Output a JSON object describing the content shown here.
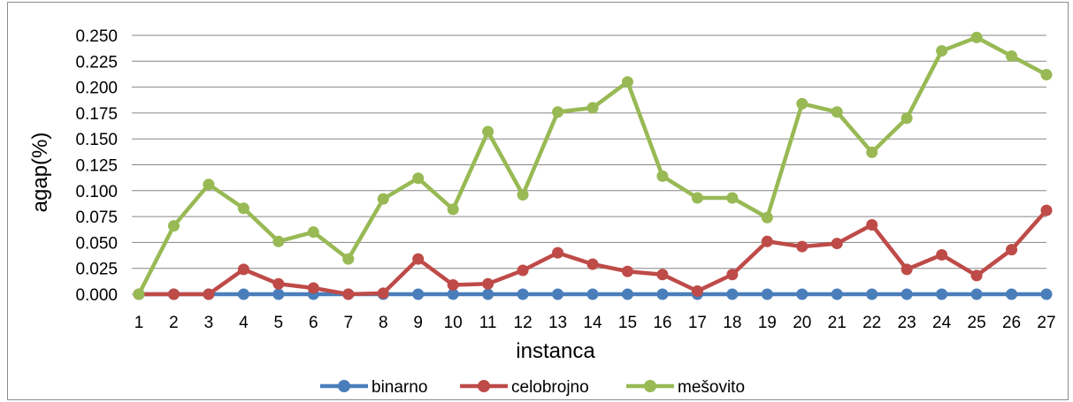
{
  "chart_data": {
    "type": "line",
    "xlabel": "instanca",
    "ylabel": "agap(%)",
    "ylim": [
      0,
      0.25
    ],
    "ytick_step": 0.025,
    "grid": true,
    "legend_position": "bottom",
    "x": [
      "1",
      "2",
      "3",
      "4",
      "5",
      "6",
      "7",
      "8",
      "9",
      "10",
      "11",
      "12",
      "13",
      "14",
      "15",
      "16",
      "17",
      "18",
      "19",
      "20",
      "21",
      "22",
      "23",
      "24",
      "25",
      "26",
      "27"
    ],
    "y_tick_labels": [
      "0.000",
      "0.025",
      "0.050",
      "0.075",
      "0.100",
      "0.125",
      "0.150",
      "0.175",
      "0.200",
      "0.225",
      "0.250"
    ],
    "series": [
      {
        "name": "binarno",
        "color": "#4a7ebb",
        "values": [
          0,
          0,
          0,
          0,
          0,
          0,
          0,
          0,
          0,
          0,
          0,
          0,
          0,
          0,
          0,
          0,
          0,
          0,
          0,
          0,
          0,
          0,
          0,
          0,
          0,
          0,
          0
        ]
      },
      {
        "name": "celobrojno",
        "color": "#be4b48",
        "values": [
          0,
          0,
          0,
          0.024,
          0.01,
          0.006,
          0,
          0.001,
          0.034,
          0.009,
          0.01,
          0.023,
          0.04,
          0.029,
          0.022,
          0.019,
          0.003,
          0.019,
          0.051,
          0.046,
          0.049,
          0.067,
          0.024,
          0.038,
          0.018,
          0.043,
          0.081
        ]
      },
      {
        "name": "mešovito",
        "color": "#98b954",
        "values": [
          0,
          0.066,
          0.106,
          0.083,
          0.051,
          0.06,
          0.034,
          0.092,
          0.112,
          0.082,
          0.157,
          0.096,
          0.176,
          0.18,
          0.205,
          0.114,
          0.093,
          0.093,
          0.074,
          0.184,
          0.176,
          0.137,
          0.17,
          0.235,
          0.248,
          0.23,
          0.212
        ]
      }
    ]
  }
}
